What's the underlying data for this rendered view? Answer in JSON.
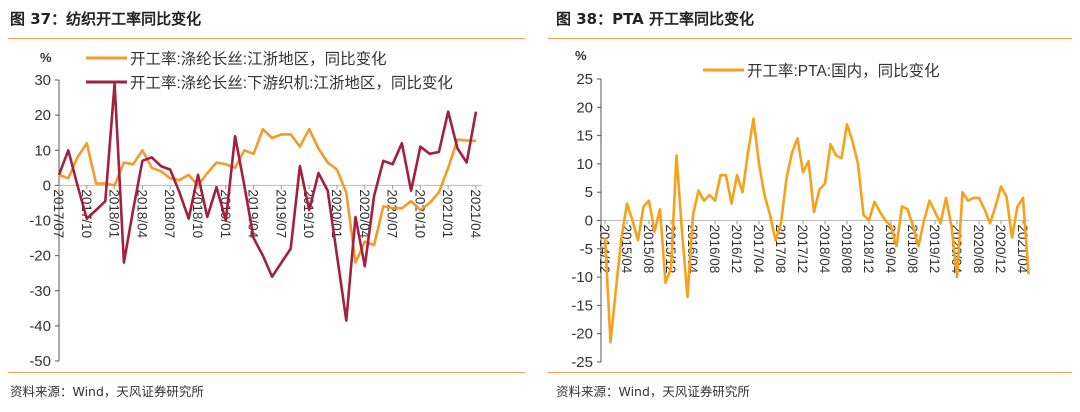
{
  "panels": [
    {
      "title": "图 37：纺织开工率同比变化",
      "source": "资料来源：Wind，天风证券研究所"
    },
    {
      "title": "图 38：PTA 开工率同比变化",
      "source": "资料来源：Wind，天风证券研究所"
    }
  ],
  "chart_data": [
    {
      "type": "line",
      "title": "图 37：纺织开工率同比变化",
      "ylabel": "%",
      "ylim": [
        -50,
        30
      ],
      "yticks": [
        30,
        20,
        10,
        0,
        -10,
        -20,
        -30,
        -40,
        -50
      ],
      "xticklabels": [
        "2017/07",
        "2017/10",
        "2018/01",
        "2018/04",
        "2018/07",
        "2018/10",
        "2019/01",
        "2019/04",
        "2019/07",
        "2019/10",
        "2020/01",
        "2020/04",
        "2020/07",
        "2020/10",
        "2021/01",
        "2021/04"
      ],
      "x_start": "2017/07",
      "x_end": "2021/04",
      "frequency": "monthly",
      "legend": "top",
      "series": [
        {
          "name": "开工率:涤纶长丝:江浙地区，同比变化",
          "color": "#f39a2b",
          "values": [
            3,
            2,
            8,
            12,
            0.5,
            0.5,
            0,
            6.5,
            6,
            10,
            5,
            4,
            2,
            1.5,
            3,
            0,
            3.5,
            6.5,
            6,
            5,
            10,
            9,
            16,
            13.5,
            14.5,
            14.5,
            11,
            16,
            10.5,
            6.5,
            4.5,
            -2,
            -22,
            -16,
            -17,
            -6,
            -6.5,
            -6.5,
            -4.5,
            -7,
            -5,
            -2,
            5,
            13,
            12.8,
            12.7
          ]
        },
        {
          "name": "开工率:涤纶长丝:下游织机:江浙地区，同比变化",
          "color": "#a3203f",
          "values": [
            3,
            10,
            0,
            -9.5,
            -7,
            -4.5,
            29,
            -22,
            -7,
            7,
            8,
            5.5,
            4.5,
            -2,
            -9.5,
            3,
            -9,
            -0.5,
            -10,
            14,
            0,
            -15,
            -20,
            -26,
            -22,
            -18,
            5.5,
            -7,
            3.5,
            -1.5,
            -20,
            -38.5,
            -9,
            -23,
            -3,
            7,
            6,
            12,
            -1.5,
            11,
            9,
            9.5,
            21,
            10.5,
            6.5,
            21
          ]
        }
      ]
    },
    {
      "type": "line",
      "title": "图 38：PTA 开工率同比变化",
      "ylabel": "%",
      "ylim": [
        -25,
        25
      ],
      "yticks": [
        25,
        20,
        15,
        10,
        5,
        0,
        -5,
        -10,
        -15,
        -20,
        -25
      ],
      "xticklabels": [
        "2014/12",
        "2015/04",
        "2015/08",
        "2015/12",
        "2016/04",
        "2016/08",
        "2016/12",
        "2017/04",
        "2017/08",
        "2017/12",
        "2018/04",
        "2018/08",
        "2018/12",
        "2019/04",
        "2019/08",
        "2019/12",
        "2020/04",
        "2020/08",
        "2020/12",
        "2021/04"
      ],
      "x_start": "2014/12",
      "x_end": "2021/05",
      "frequency": "monthly",
      "legend": "top",
      "series": [
        {
          "name": "开工率:PTA:国内，同比变化",
          "color": "#f7a11a",
          "values": [
            -3,
            -21.5,
            -12,
            -3,
            3,
            0,
            -3.5,
            2.5,
            3.5,
            -2,
            2,
            -11,
            -8.5,
            11.5,
            -2,
            -13.5,
            1,
            5.3,
            3.5,
            4.5,
            3.5,
            8,
            8,
            3,
            8,
            5,
            12,
            18,
            10,
            4.5,
            1,
            -3.5,
            -0.5,
            7.5,
            12,
            14.5,
            8.5,
            10.5,
            1.5,
            5.5,
            6.5,
            13.5,
            11.5,
            11,
            17,
            14,
            10,
            1,
            0,
            3.3,
            1.5,
            0,
            -1,
            -4.5,
            2.5,
            2,
            -1,
            -4.5,
            0,
            3.5,
            1.5,
            -0.5,
            4,
            -1,
            -10,
            5,
            3.5,
            4,
            4,
            2,
            -0.5,
            2.5,
            6,
            4.2,
            -3,
            2.5,
            4,
            -9.5
          ]
        }
      ]
    }
  ]
}
